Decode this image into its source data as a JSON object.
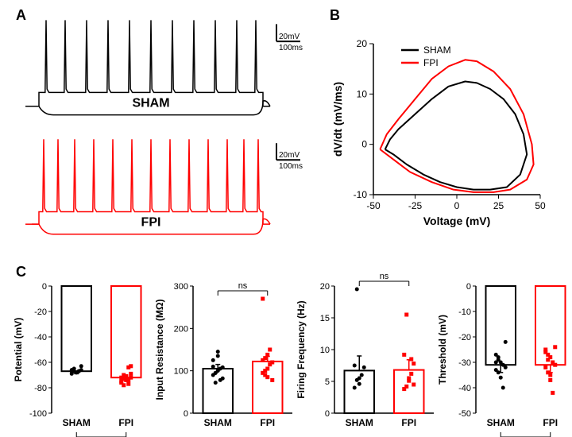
{
  "panelA": {
    "label": "A",
    "sham": {
      "label": "SHAM",
      "color": "#000000",
      "baseline": -68,
      "hyperpol": -78,
      "depol_plateau": -52,
      "spike_times_ms": [
        60,
        140,
        230,
        320,
        410,
        500,
        590,
        680,
        770,
        860,
        940
      ],
      "spike_peak": 32,
      "stim_start_ms": 30,
      "stim_end_ms": 970,
      "duration_ms": 1000
    },
    "fpi": {
      "label": "FPI",
      "color": "#ff0000",
      "baseline": -70,
      "hyperpol": -82,
      "depol_plateau": -55,
      "spike_times_ms": [
        50,
        110,
        180,
        260,
        340,
        420,
        500,
        580,
        660,
        740,
        820,
        890,
        950
      ],
      "spike_peak": 32,
      "stim_start_ms": 30,
      "stim_end_ms": 970,
      "duration_ms": 1000
    },
    "scalebar": {
      "mv": 20,
      "ms": 100,
      "mv_label": "20mV",
      "ms_label": "100ms"
    }
  },
  "panelB": {
    "label": "B",
    "xlabel": "Voltage (mV)",
    "ylabel": "dV/dt (mV/ms)",
    "xlim": [
      -50,
      50
    ],
    "xtick_step": 25,
    "ylim": [
      -10,
      20
    ],
    "ytick_step": 10,
    "axis_color": "#000000",
    "tick_fontsize": 12,
    "label_fontsize": 14,
    "legend": [
      {
        "label": "SHAM",
        "color": "#000000"
      },
      {
        "label": "FPI",
        "color": "#ff0000"
      }
    ],
    "sham_path": [
      [
        -43,
        -1
      ],
      [
        -40,
        1
      ],
      [
        -35,
        3
      ],
      [
        -25,
        6
      ],
      [
        -15,
        9
      ],
      [
        -5,
        11.5
      ],
      [
        5,
        12.5
      ],
      [
        12,
        12.2
      ],
      [
        20,
        11
      ],
      [
        28,
        9
      ],
      [
        35,
        6
      ],
      [
        40,
        2
      ],
      [
        42,
        -2
      ],
      [
        38,
        -6
      ],
      [
        30,
        -8.5
      ],
      [
        20,
        -9
      ],
      [
        10,
        -9
      ],
      [
        0,
        -8.5
      ],
      [
        -10,
        -7.5
      ],
      [
        -20,
        -6
      ],
      [
        -30,
        -4
      ],
      [
        -38,
        -2
      ],
      [
        -43,
        -1
      ]
    ],
    "fpi_path": [
      [
        -46,
        -1
      ],
      [
        -42,
        2
      ],
      [
        -35,
        5
      ],
      [
        -25,
        9
      ],
      [
        -15,
        13
      ],
      [
        -5,
        15.5
      ],
      [
        5,
        16.8
      ],
      [
        12,
        16.5
      ],
      [
        22,
        14.5
      ],
      [
        32,
        11
      ],
      [
        40,
        6
      ],
      [
        45,
        0
      ],
      [
        46,
        -4
      ],
      [
        42,
        -7
      ],
      [
        32,
        -9
      ],
      [
        22,
        -9.5
      ],
      [
        10,
        -9.5
      ],
      [
        -2,
        -9
      ],
      [
        -15,
        -7.5
      ],
      [
        -28,
        -5.5
      ],
      [
        -38,
        -3
      ],
      [
        -46,
        -1
      ]
    ]
  },
  "panelC": {
    "label": "C",
    "common": {
      "bar_width": 0.6,
      "categories": [
        "SHAM",
        "FPI"
      ],
      "bar_colors": [
        "#000000",
        "#ff0000"
      ],
      "fill_colors": [
        "#ffffff",
        "#ffffff"
      ],
      "border_width": 2,
      "marker_size": 5,
      "error_cap": 6,
      "ns_label": "ns",
      "axis_color": "#000000",
      "tick_fontsize": 11,
      "label_fontsize": 12
    },
    "plots": [
      {
        "ylabel": "Resting Potential (mV)",
        "ylabel_visible": "Potential (mV)",
        "ylim": [
          -100,
          0
        ],
        "ytick_step": 20,
        "inverted": false,
        "means": [
          -67,
          -72
        ],
        "sems": [
          2,
          2
        ],
        "points": {
          "SHAM": [
            -66,
            -67,
            -68,
            -67,
            -66,
            -67,
            -65,
            -68,
            -67,
            -63,
            -69
          ],
          "FPI": [
            -72,
            -73,
            -71,
            -74,
            -72,
            -75,
            -70,
            -71,
            -64,
            -63,
            -76,
            -78,
            -74,
            -77,
            -69
          ]
        },
        "ns_below": true
      },
      {
        "ylabel": "Input Resistance (MΩ)",
        "ylim": [
          0,
          300
        ],
        "ytick_step": 100,
        "means": [
          105,
          122
        ],
        "sems": [
          10,
          12
        ],
        "points": {
          "SHAM": [
            90,
            95,
            100,
            105,
            108,
            110,
            95,
            135,
            78,
            82,
            125,
            72,
            145
          ],
          "FPI": [
            95,
            100,
            105,
            115,
            120,
            125,
            130,
            138,
            150,
            78,
            270,
            90,
            85
          ]
        },
        "ns_below": false
      },
      {
        "ylabel": "Firing Frequency (Hz)",
        "ylim": [
          0,
          20
        ],
        "ytick_step": 5,
        "means": [
          6.7,
          6.8
        ],
        "sems": [
          2.3,
          1.6
        ],
        "points": {
          "SHAM": [
            4,
            5.2,
            5.5,
            6,
            7.2,
            7.5,
            19.5,
            4.6
          ],
          "FPI": [
            3.8,
            4.2,
            5.5,
            6.2,
            7.8,
            9.2,
            15.5,
            5.1,
            8.5,
            4.5
          ]
        },
        "ns_below": false
      },
      {
        "ylabel": "Threshold (mV)",
        "ylim": [
          -50,
          0
        ],
        "ytick_step": 10,
        "inverted": false,
        "means": [
          -31,
          -31
        ],
        "sems": [
          3,
          3
        ],
        "points": {
          "SHAM": [
            -27,
            -29,
            -30,
            -31,
            -32,
            -33,
            -34,
            -36,
            -40,
            -22,
            -30,
            -28
          ],
          "FPI": [
            -25,
            -27,
            -28,
            -30,
            -31,
            -32,
            -34,
            -37,
            -42,
            -24,
            -26,
            -29,
            -35
          ]
        },
        "ns_below": true
      }
    ]
  }
}
